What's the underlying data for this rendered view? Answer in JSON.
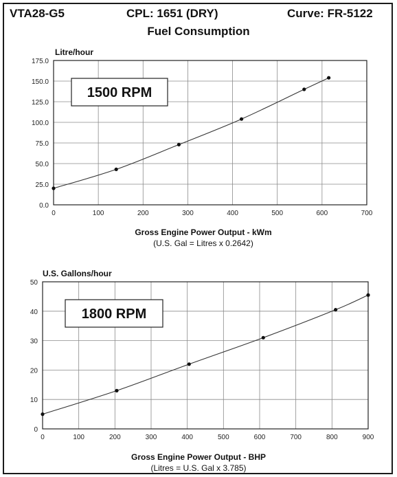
{
  "header": {
    "model": "VTA28-G5",
    "cpl": "CPL: 1651 (DRY)",
    "curve": "Curve: FR-5122",
    "title": "Fuel Consumption"
  },
  "chart_data": [
    {
      "type": "line",
      "ylabel": "Litre/hour",
      "badge": "1500 RPM",
      "xlabel": "Gross Engine Power Output - kWm",
      "note": "(U.S. Gal = Litres x 0.2642)",
      "xlim": [
        0,
        700
      ],
      "ylim": [
        0,
        175
      ],
      "xticks": [
        "0",
        "100",
        "200",
        "300",
        "400",
        "500",
        "600",
        "700"
      ],
      "yticks": [
        "0.0",
        "25.0",
        "50.0",
        "75.0",
        "100.0",
        "125.0",
        "150.0",
        "175.0"
      ],
      "grid": true,
      "series": [
        {
          "x": [
            0,
            140,
            280,
            420,
            560,
            615
          ],
          "y": [
            20,
            43,
            73,
            104,
            140,
            154
          ]
        }
      ]
    },
    {
      "type": "line",
      "ylabel": "U.S. Gallons/hour",
      "badge": "1800 RPM",
      "xlabel": "Gross Engine Power Output - BHP",
      "note": "(Litres = U.S. Gal x 3.785)",
      "xlim": [
        0,
        900
      ],
      "ylim": [
        0,
        50
      ],
      "xticks": [
        "0",
        "100",
        "200",
        "300",
        "400",
        "500",
        "600",
        "700",
        "800",
        "900"
      ],
      "yticks": [
        "0",
        "10",
        "20",
        "30",
        "40",
        "50"
      ],
      "grid": true,
      "series": [
        {
          "x": [
            0,
            205,
            405,
            610,
            810,
            900
          ],
          "y": [
            5,
            13,
            22,
            31,
            40.5,
            45.5
          ]
        }
      ]
    }
  ]
}
